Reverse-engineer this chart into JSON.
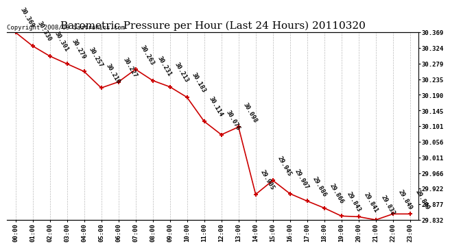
{
  "title": "Barometric Pressure per Hour (Last 24 Hours) 20110320",
  "subtitle": "Copyright 2008/09 Saztronics.com",
  "hours": [
    "00:00",
    "01:00",
    "02:00",
    "03:00",
    "04:00",
    "05:00",
    "06:00",
    "07:00",
    "08:00",
    "09:00",
    "10:00",
    "11:00",
    "12:00",
    "13:00",
    "14:00",
    "15:00",
    "16:00",
    "17:00",
    "18:00",
    "19:00",
    "20:00",
    "21:00",
    "22:00",
    "23:00"
  ],
  "values": [
    30.369,
    30.33,
    30.301,
    30.279,
    30.257,
    30.21,
    30.227,
    30.263,
    30.231,
    30.213,
    30.183,
    30.114,
    30.076,
    30.098,
    29.905,
    29.945,
    29.907,
    29.886,
    29.866,
    29.843,
    29.841,
    29.832,
    29.849,
    29.849
  ],
  "y_ticks": [
    29.832,
    29.877,
    29.922,
    29.966,
    30.011,
    30.056,
    30.101,
    30.145,
    30.19,
    30.235,
    30.279,
    30.324,
    30.369
  ],
  "line_color": "#cc0000",
  "marker_color": "#cc0000",
  "bg_color": "#ffffff",
  "grid_color": "#aaaaaa",
  "title_fontsize": 11,
  "subtitle_fontsize": 6.5,
  "label_fontsize": 6.5
}
